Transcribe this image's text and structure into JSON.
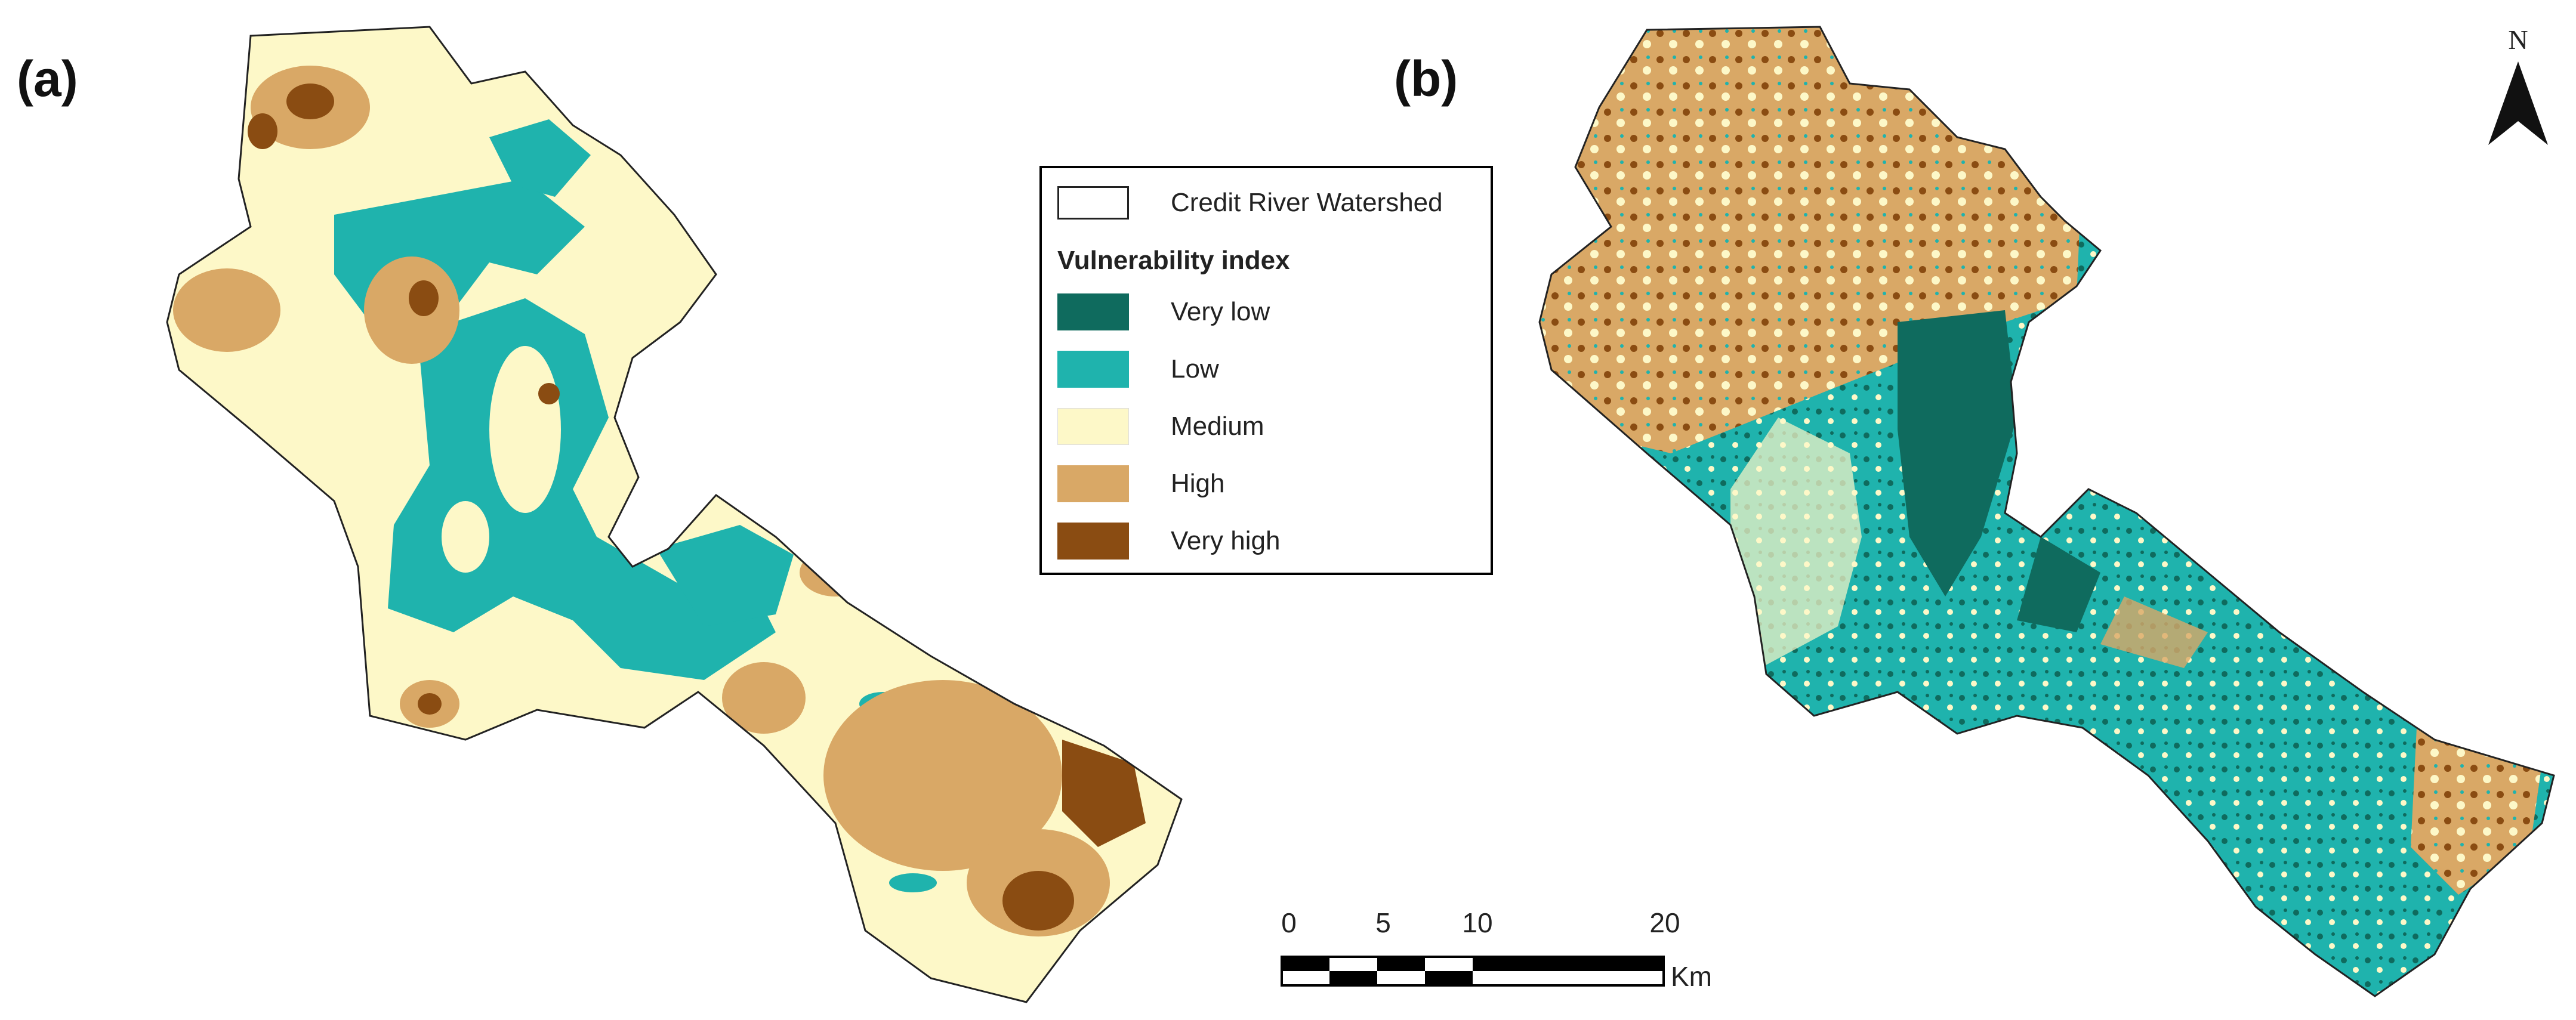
{
  "panels": {
    "a": "(a)",
    "b": "(b)"
  },
  "legend": {
    "boundary_label": "Credit River Watershed",
    "title": "Vulnerability index",
    "classes": [
      {
        "label": "Very low",
        "color": "#0f6b5e"
      },
      {
        "label": "Low",
        "color": "#1fb3ad"
      },
      {
        "label": "Medium",
        "color": "#fdf8c8"
      },
      {
        "label": "High",
        "color": "#d9a866"
      },
      {
        "label": "Very high",
        "color": "#8a4c12"
      }
    ]
  },
  "scale_bar": {
    "ticks": [
      "0",
      "5",
      "10",
      "20"
    ],
    "unit": "Km"
  },
  "north_arrow": {
    "label": "N"
  }
}
